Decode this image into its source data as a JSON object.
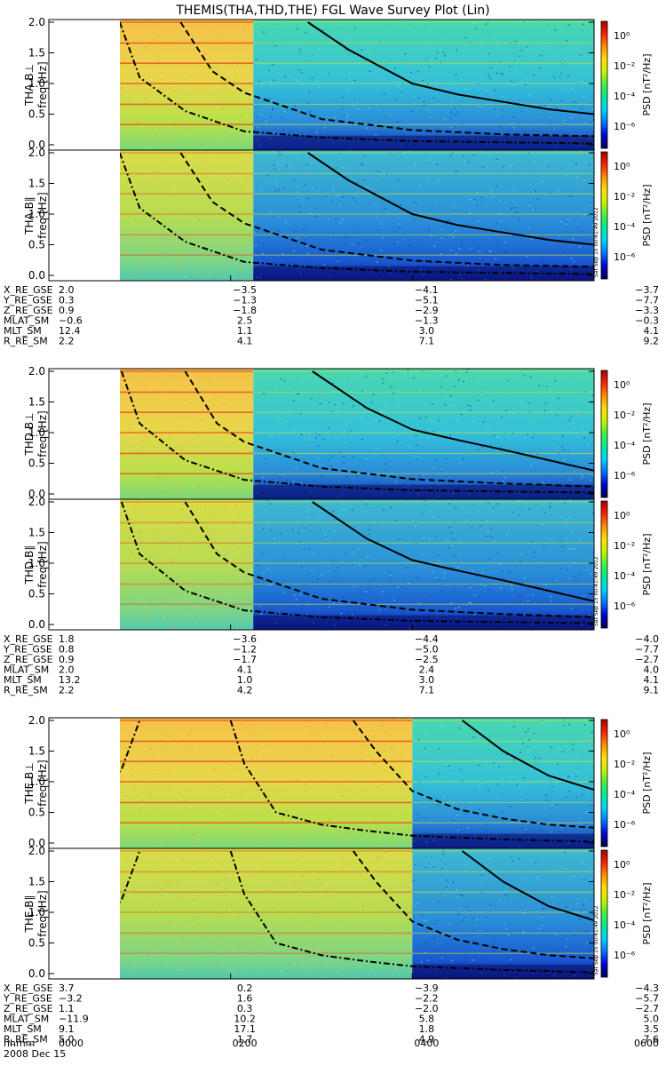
{
  "title": "THEMIS(THA,THD,THE) FGL Wave Survey Plot (Lin)",
  "colors": {
    "background_scale": [
      "#00004a",
      "#0000d0",
      "#0070ff",
      "#00d0ff",
      "#00e8a0",
      "#40f040",
      "#c8f000",
      "#ffe000",
      "#ff9000",
      "#ff2000",
      "#a00000"
    ],
    "curve": "#000000"
  },
  "chart_data": {
    "type": "heatmap",
    "title": "THEMIS(THA,THD,THE) FGL Wave Survey Plot (Lin)",
    "time_axis": {
      "labels": [
        "0000",
        "0200",
        "0400",
        "0600"
      ],
      "range": [
        "0000",
        "0600"
      ],
      "date": "2008 Dec 15",
      "row_label": "hhmm"
    },
    "ylim": [
      0.0,
      2.0
    ],
    "yticks": [
      "0.0",
      "0.5",
      "1.0",
      "1.5",
      "2.0"
    ],
    "colorbar": {
      "label": "PSD [nT²/Hz]",
      "ticks": [
        "10⁰",
        "10⁻²",
        "10⁻⁴",
        "10⁻⁶"
      ]
    },
    "side_stamp": "Sat Sep 15 00:41:49 2012",
    "probes": [
      {
        "probe": "THA",
        "panels": [
          {
            "ylabel": "THA B⊥",
            "unit_label": "freq [Hz]",
            "start": "0015",
            "high_gain_end": "0215"
          },
          {
            "ylabel": "THA B∥",
            "unit_label": "freq [Hz]",
            "start": "0015",
            "high_gain_end": "0215"
          }
        ],
        "curves": [
          {
            "style": "dash-dot",
            "points": [
              [
                0.78,
                2.0
              ],
              [
                1.0,
                1.1
              ],
              [
                1.5,
                0.55
              ],
              [
                2.15,
                0.22
              ],
              [
                3.0,
                0.12
              ],
              [
                4.0,
                0.06
              ],
              [
                6.0,
                0.02
              ]
            ]
          },
          {
            "style": "dashed",
            "points": [
              [
                1.45,
                2.0
              ],
              [
                1.8,
                1.2
              ],
              [
                2.15,
                0.85
              ],
              [
                3.0,
                0.42
              ],
              [
                4.0,
                0.24
              ],
              [
                5.0,
                0.17
              ],
              [
                6.0,
                0.14
              ]
            ]
          },
          {
            "style": "solid",
            "points": [
              [
                2.85,
                2.0
              ],
              [
                3.3,
                1.55
              ],
              [
                4.0,
                1.0
              ],
              [
                4.5,
                0.82
              ],
              [
                5.0,
                0.7
              ],
              [
                5.5,
                0.58
              ],
              [
                6.0,
                0.5
              ]
            ]
          }
        ],
        "orbit": {
          "rows": [
            "X_RE_GSE",
            "Y_RE_GSE",
            "Z_RE_GSE",
            "MLAT_SM",
            "MLT_SM",
            "R_RE_SM"
          ],
          "values": [
            [
              "2.0",
              "-3.5",
              "-4.1",
              "-3.7"
            ],
            [
              "0.3",
              "-1.3",
              "-5.1",
              "-7.7"
            ],
            [
              "0.9",
              "-1.8",
              "-2.9",
              "-3.3"
            ],
            [
              "-0.6",
              "2.5",
              "-1.3",
              "-0.3"
            ],
            [
              "12.4",
              "1.1",
              "3.0",
              "4.1"
            ],
            [
              "2.2",
              "4.1",
              "7.1",
              "9.2"
            ]
          ]
        }
      },
      {
        "probe": "THD",
        "panels": [
          {
            "ylabel": "THD B⊥",
            "unit_label": "freq [Hz]",
            "start": "0015",
            "high_gain_end": "0215"
          },
          {
            "ylabel": "THD B∥",
            "unit_label": "freq [Hz]",
            "start": "0015",
            "high_gain_end": "0215"
          }
        ],
        "curves": [
          {
            "style": "dash-dot",
            "points": [
              [
                0.8,
                2.0
              ],
              [
                1.0,
                1.15
              ],
              [
                1.5,
                0.55
              ],
              [
                2.15,
                0.23
              ],
              [
                3.0,
                0.12
              ],
              [
                4.0,
                0.06
              ],
              [
                6.0,
                0.02
              ]
            ]
          },
          {
            "style": "dashed",
            "points": [
              [
                1.5,
                2.0
              ],
              [
                1.85,
                1.15
              ],
              [
                2.15,
                0.85
              ],
              [
                3.0,
                0.42
              ],
              [
                4.0,
                0.24
              ],
              [
                5.0,
                0.17
              ],
              [
                6.0,
                0.12
              ]
            ]
          },
          {
            "style": "solid",
            "points": [
              [
                2.9,
                2.0
              ],
              [
                3.5,
                1.4
              ],
              [
                4.0,
                1.05
              ],
              [
                4.5,
                0.88
              ],
              [
                5.0,
                0.72
              ],
              [
                5.5,
                0.55
              ],
              [
                6.0,
                0.38
              ]
            ]
          }
        ],
        "orbit": {
          "rows": [
            "X_RE_GSE",
            "Y_RE_GSE",
            "Z_RE_GSE",
            "MLAT_SM",
            "MLT_SM",
            "R_RE_SM"
          ],
          "values": [
            [
              "1.8",
              "-3.6",
              "-4.4",
              "-4.0"
            ],
            [
              "0.8",
              "-1.2",
              "-5.0",
              "-7.7"
            ],
            [
              "0.9",
              "-1.7",
              "-2.5",
              "-2.7"
            ],
            [
              "2.0",
              "4.1",
              "2.4",
              "4.0"
            ],
            [
              "13.2",
              "1.0",
              "3.0",
              "4.1"
            ],
            [
              "2.2",
              "4.2",
              "7.1",
              "9.1"
            ]
          ]
        }
      },
      {
        "probe": "THE",
        "panels": [
          {
            "ylabel": "THE B⊥",
            "unit_label": "freq [Hz]",
            "start": "0015",
            "high_gain_end": "0400"
          },
          {
            "ylabel": "THE B∥",
            "unit_label": "freq [Hz]",
            "start": "0015",
            "high_gain_end": "0400"
          }
        ],
        "curves": [
          {
            "style": "dash-dot",
            "points": [
              [
                0.0,
                0.0
              ],
              [
                0.15,
                0.4
              ],
              [
                0.5,
                0.7
              ],
              [
                0.8,
                1.2
              ],
              [
                1.0,
                2.0
              ]
            ]
          },
          {
            "style": "dash-dot",
            "points": [
              [
                2.0,
                2.0
              ],
              [
                2.15,
                1.3
              ],
              [
                2.5,
                0.5
              ],
              [
                3.0,
                0.3
              ],
              [
                3.5,
                0.2
              ],
              [
                4.0,
                0.12
              ],
              [
                5.0,
                0.06
              ],
              [
                6.0,
                0.02
              ]
            ]
          },
          {
            "style": "dashed",
            "points": [
              [
                0.0,
                1.95
              ],
              [
                0.2,
                2.0
              ]
            ]
          },
          {
            "style": "dashed",
            "points": [
              [
                3.35,
                2.0
              ],
              [
                3.6,
                1.5
              ],
              [
                4.0,
                0.85
              ],
              [
                4.5,
                0.55
              ],
              [
                5.0,
                0.4
              ],
              [
                5.5,
                0.3
              ],
              [
                6.0,
                0.25
              ]
            ]
          },
          {
            "style": "solid",
            "points": [
              [
                4.55,
                2.0
              ],
              [
                5.0,
                1.5
              ],
              [
                5.5,
                1.1
              ],
              [
                6.0,
                0.87
              ]
            ]
          }
        ],
        "orbit": {
          "rows": [
            "X_RE_GSE",
            "Y_RE_GSE",
            "Z_RE_GSE",
            "MLAT_SM",
            "MLT_SM",
            "R_RE_SM"
          ],
          "values": [
            [
              "3.7",
              "0.2",
              "-3.9",
              "-4.3"
            ],
            [
              "-3.2",
              "1.6",
              "-2.2",
              "-5.7"
            ],
            [
              "1.1",
              "0.3",
              "-2.0",
              "-2.7"
            ],
            [
              "-11.9",
              "10.2",
              "5.8",
              "5.0"
            ],
            [
              "9.1",
              "17.1",
              "1.8",
              "3.5"
            ],
            [
              "5.0",
              "1.7",
              "4.9",
              "7.6"
            ]
          ]
        }
      }
    ]
  }
}
